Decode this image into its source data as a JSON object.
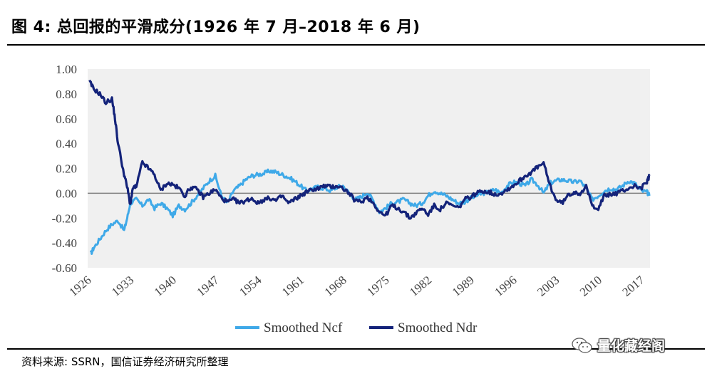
{
  "figure": {
    "title": "图 4:  总回报的平滑成分(1926 年 7 月–2018 年 6 月)",
    "source": "资料来源: SSRN，国信证券经济研究所整理",
    "watermark": "量化藏经阁"
  },
  "colors": {
    "ncf": "#3fa9e8",
    "ndr": "#14237a",
    "zero_line": "#7f7f7f",
    "plot_bg": "#f0f0f0"
  },
  "chart_data": {
    "type": "line",
    "title": "",
    "xlabel": "",
    "ylabel": "",
    "xlim": [
      1926,
      2018.5
    ],
    "ylim": [
      -0.6,
      1.0
    ],
    "y_ticks": [
      "1.00",
      "0.80",
      "0.60",
      "0.40",
      "0.20",
      "0.00",
      "-0.20",
      "-0.40",
      "-0.60"
    ],
    "y_tick_values": [
      1.0,
      0.8,
      0.6,
      0.4,
      0.2,
      0.0,
      -0.2,
      -0.4,
      -0.6
    ],
    "x_ticks": [
      "1926",
      "1933",
      "1940",
      "1947",
      "1954",
      "1961",
      "1968",
      "1975",
      "1982",
      "1989",
      "1996",
      "2003",
      "2010",
      "2017"
    ],
    "x_tick_values": [
      1926,
      1933,
      1940,
      1947,
      1954,
      1961,
      1968,
      1975,
      1982,
      1989,
      1996,
      2003,
      2010,
      2017
    ],
    "reference_line": 0.0,
    "legend": [
      "Smoothed Ncf",
      "Smoothed Ndr"
    ],
    "legend_position": "bottom",
    "series": [
      {
        "name": "Smoothed Ncf",
        "x": [
          1926.5,
          1927,
          1928,
          1929,
          1930,
          1931,
          1932,
          1932.5,
          1933,
          1934,
          1935,
          1936,
          1937,
          1938,
          1939,
          1940,
          1941,
          1942,
          1943,
          1944,
          1945,
          1946,
          1947,
          1948,
          1949,
          1950,
          1951,
          1952,
          1953,
          1954,
          1955,
          1956,
          1957,
          1958,
          1959,
          1960,
          1961,
          1962,
          1963,
          1964,
          1965,
          1966,
          1967,
          1968,
          1969,
          1970,
          1971,
          1972,
          1973,
          1974,
          1975,
          1976,
          1977,
          1978,
          1979,
          1980,
          1981,
          1982,
          1983,
          1984,
          1985,
          1986,
          1987,
          1988,
          1989,
          1990,
          1991,
          1992,
          1993,
          1994,
          1995,
          1996,
          1997,
          1998,
          1999,
          2000,
          2001,
          2002,
          2003,
          2004,
          2005,
          2006,
          2007,
          2008,
          2009,
          2010,
          2011,
          2012,
          2013,
          2014,
          2015,
          2016,
          2017,
          2018,
          2018.4
        ],
        "values": [
          -0.49,
          -0.44,
          -0.37,
          -0.3,
          -0.25,
          -0.22,
          -0.3,
          -0.2,
          -0.08,
          -0.05,
          -0.1,
          -0.05,
          -0.12,
          -0.08,
          -0.12,
          -0.18,
          -0.1,
          -0.13,
          -0.08,
          -0.02,
          0.04,
          0.1,
          0.14,
          -0.02,
          -0.08,
          0.02,
          0.06,
          0.11,
          0.14,
          0.15,
          0.16,
          0.18,
          0.17,
          0.15,
          0.13,
          0.1,
          0.06,
          0.02,
          0.04,
          0.05,
          0.04,
          0.02,
          0.05,
          0.06,
          0.0,
          -0.05,
          -0.03,
          0.01,
          -0.06,
          -0.15,
          -0.12,
          -0.08,
          -0.07,
          -0.05,
          -0.08,
          -0.1,
          -0.08,
          -0.02,
          0.02,
          0.0,
          -0.02,
          -0.05,
          -0.08,
          -0.07,
          -0.04,
          -0.02,
          0.0,
          0.01,
          0.03,
          0.0,
          0.06,
          0.09,
          0.08,
          0.06,
          0.11,
          0.07,
          0.0,
          0.08,
          0.1,
          0.11,
          0.1,
          0.09,
          0.1,
          0.04,
          -0.05,
          -0.02,
          0.02,
          0.04,
          0.03,
          0.06,
          0.1,
          0.08,
          0.02,
          0.01,
          -0.02
        ]
      },
      {
        "name": "Smoothed Ndr",
        "x": [
          1926.3,
          1927,
          1928,
          1929,
          1930,
          1930.5,
          1931,
          1932,
          1932.5,
          1933,
          1933.5,
          1934,
          1935,
          1936,
          1937,
          1938,
          1939,
          1940,
          1941,
          1942,
          1943,
          1944,
          1945,
          1946,
          1947,
          1948,
          1949,
          1950,
          1951,
          1952,
          1953,
          1954,
          1955,
          1956,
          1957,
          1958,
          1959,
          1960,
          1961,
          1962,
          1963,
          1964,
          1965,
          1966,
          1967,
          1968,
          1969,
          1970,
          1971,
          1972,
          1973,
          1974,
          1975,
          1976,
          1977,
          1978,
          1979,
          1980,
          1981,
          1982,
          1983,
          1984,
          1985,
          1986,
          1987,
          1988,
          1989,
          1990,
          1991,
          1992,
          1993,
          1994,
          1995,
          1996,
          1997,
          1998,
          1999,
          2000,
          2001,
          2002,
          2003,
          2004,
          2005,
          2006,
          2007,
          2008,
          2009,
          2010,
          2011,
          2012,
          2013,
          2014,
          2015,
          2016,
          2017,
          2018,
          2018.4
        ],
        "values": [
          0.9,
          0.84,
          0.8,
          0.73,
          0.76,
          0.6,
          0.4,
          0.15,
          0.05,
          -0.09,
          0.05,
          0.05,
          0.25,
          0.2,
          0.15,
          0.02,
          0.08,
          0.07,
          0.04,
          -0.02,
          0.05,
          0.03,
          -0.03,
          0.0,
          0.03,
          -0.04,
          -0.07,
          -0.05,
          -0.08,
          -0.06,
          -0.04,
          -0.08,
          -0.05,
          -0.04,
          -0.06,
          -0.02,
          -0.08,
          -0.05,
          -0.02,
          0.01,
          0.03,
          0.04,
          0.06,
          0.05,
          0.06,
          0.04,
          0.0,
          -0.06,
          -0.07,
          -0.03,
          -0.08,
          -0.15,
          -0.18,
          -0.1,
          -0.12,
          -0.15,
          -0.2,
          -0.16,
          -0.12,
          -0.17,
          -0.1,
          -0.13,
          -0.08,
          -0.1,
          -0.12,
          -0.05,
          -0.03,
          0.0,
          0.02,
          0.01,
          -0.01,
          0.0,
          0.03,
          0.06,
          0.1,
          0.14,
          0.17,
          0.21,
          0.24,
          0.07,
          -0.05,
          -0.08,
          -0.02,
          0.01,
          0.0,
          0.05,
          -0.1,
          -0.12,
          -0.02,
          -0.01,
          0.0,
          0.02,
          0.04,
          0.06,
          0.04,
          0.09,
          0.14
        ]
      }
    ]
  }
}
